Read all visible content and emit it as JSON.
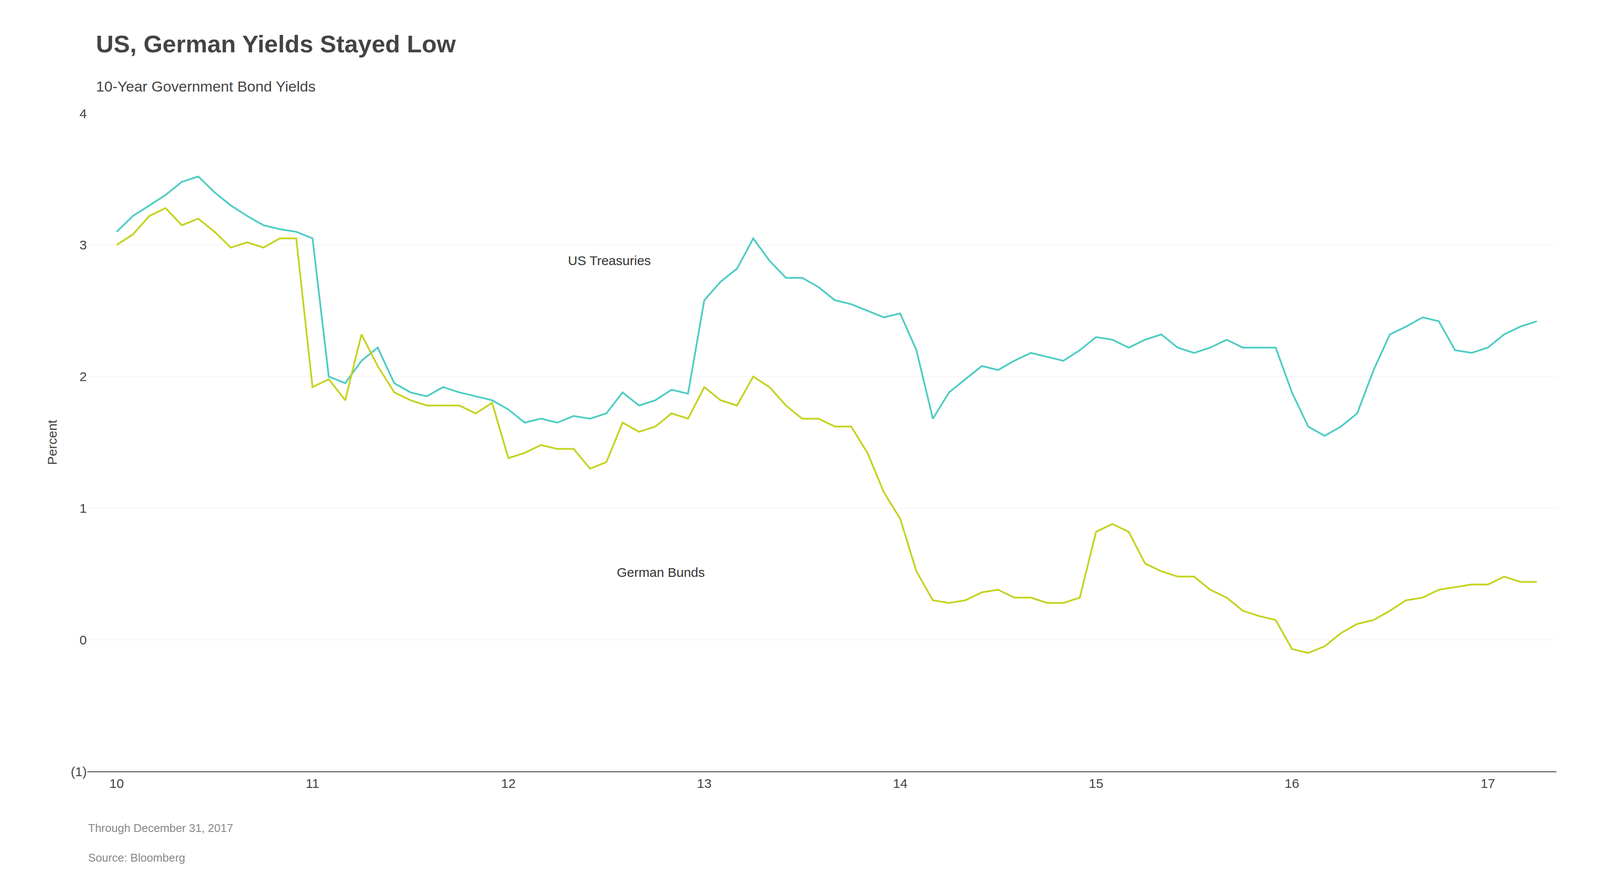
{
  "chart_data": {
    "type": "line",
    "title": "US, German Yields Stayed Low",
    "subtitle": "10-Year Government Bond Yields",
    "ylabel": "Percent",
    "footnotes": [
      "Through December 31, 2017",
      "Source: Bloomberg"
    ],
    "x": [
      10.0,
      10.083,
      10.167,
      10.25,
      10.333,
      10.417,
      10.5,
      10.583,
      10.667,
      10.75,
      10.833,
      10.917,
      11.0,
      11.083,
      11.167,
      11.25,
      11.333,
      11.417,
      11.5,
      11.583,
      11.667,
      11.75,
      11.833,
      11.917,
      12.0,
      12.083,
      12.167,
      12.25,
      12.333,
      12.417,
      12.5,
      12.583,
      12.667,
      12.75,
      12.833,
      12.917,
      13.0,
      13.083,
      13.167,
      13.25,
      13.333,
      13.417,
      13.5,
      13.583,
      13.667,
      13.75,
      13.833,
      13.917,
      14.0,
      14.083,
      14.167,
      14.25,
      14.333,
      14.417,
      14.5,
      14.583,
      14.667,
      14.75,
      14.833,
      14.917,
      15.0,
      15.083,
      15.167,
      15.25,
      15.333,
      15.417,
      15.5,
      15.583,
      15.667,
      15.75,
      15.833,
      15.917,
      16.0,
      16.083,
      16.167,
      16.25,
      16.333,
      16.417,
      16.5,
      16.583,
      16.667,
      16.75,
      16.833,
      16.917,
      17.0,
      17.083,
      17.167,
      17.25
    ],
    "series": [
      {
        "name": "US Treasuries",
        "color": "#4ECDC4",
        "values": [
          3.1,
          3.22,
          3.3,
          3.38,
          3.48,
          3.52,
          3.4,
          3.3,
          3.22,
          3.15,
          3.12,
          3.1,
          3.05,
          2.0,
          1.95,
          2.12,
          2.22,
          1.95,
          1.88,
          1.85,
          1.92,
          1.88,
          1.85,
          1.82,
          1.75,
          1.65,
          1.68,
          1.65,
          1.7,
          1.68,
          1.72,
          1.88,
          1.78,
          1.82,
          1.9,
          1.87,
          2.58,
          2.72,
          2.82,
          3.05,
          2.88,
          2.75,
          2.75,
          2.68,
          2.58,
          2.55,
          2.5,
          2.45,
          2.48,
          2.2,
          1.68,
          1.88,
          1.98,
          2.08,
          2.05,
          2.12,
          2.18,
          2.15,
          2.12,
          2.2,
          2.3,
          2.28,
          2.22,
          2.28,
          2.32,
          2.22,
          2.18,
          2.22,
          2.28,
          2.22,
          2.22,
          2.22,
          1.88,
          1.62,
          1.55,
          1.62,
          1.72,
          2.05,
          2.32,
          2.38,
          2.45,
          2.42,
          2.2,
          2.18,
          2.22,
          2.32,
          2.38,
          2.42
        ]
      },
      {
        "name": "German Bunds",
        "color": "#C5D320",
        "values": [
          3.0,
          3.08,
          3.22,
          3.28,
          3.15,
          3.2,
          3.1,
          2.98,
          3.02,
          2.98,
          3.05,
          3.05,
          1.92,
          1.98,
          1.82,
          2.32,
          2.08,
          1.88,
          1.82,
          1.78,
          1.78,
          1.78,
          1.72,
          1.8,
          1.38,
          1.42,
          1.48,
          1.45,
          1.45,
          1.3,
          1.35,
          1.65,
          1.58,
          1.62,
          1.72,
          1.68,
          1.92,
          1.82,
          1.78,
          2.0,
          1.92,
          1.78,
          1.68,
          1.68,
          1.62,
          1.62,
          1.42,
          1.12,
          0.92,
          0.52,
          0.3,
          0.28,
          0.3,
          0.36,
          0.38,
          0.32,
          0.32,
          0.28,
          0.28,
          0.32,
          0.82,
          0.88,
          0.82,
          0.58,
          0.52,
          0.48,
          0.48,
          0.38,
          0.32,
          0.22,
          0.18,
          0.15,
          -0.07,
          -0.1,
          -0.05,
          0.05,
          0.12,
          0.15,
          0.22,
          0.3,
          0.32,
          0.38,
          0.4,
          0.42,
          0.42,
          0.48,
          0.44,
          0.44
        ]
      }
    ],
    "annotations": [
      {
        "text": "US Treasuries",
        "x": 12.3,
        "y": 2.82
      },
      {
        "text": "German Bunds",
        "x": 12.55,
        "y": 0.45
      }
    ],
    "xlim": [
      9.85,
      17.35
    ],
    "xticks": [
      10,
      11,
      12,
      13,
      14,
      15,
      16,
      17
    ],
    "ylim": [
      -1.0,
      4.0
    ],
    "yticks": [
      {
        "value": -1,
        "label": "(1)"
      },
      0,
      1,
      2,
      3,
      4
    ],
    "grid": "y"
  }
}
